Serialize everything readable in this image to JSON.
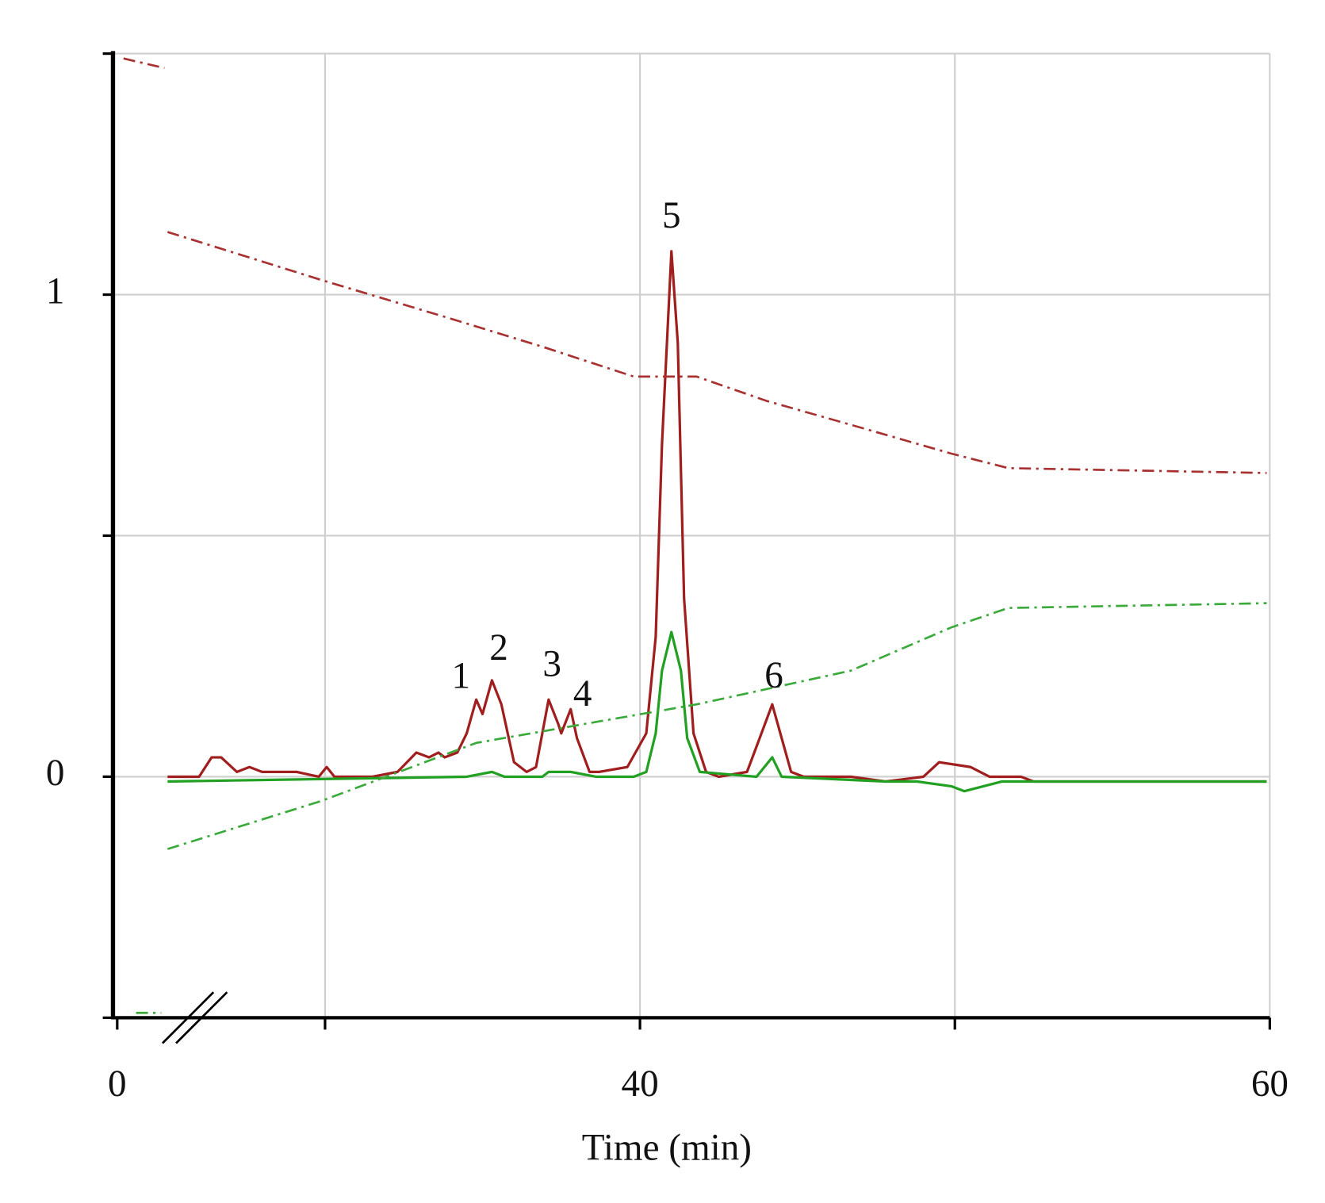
{
  "chart_data": {
    "type": "line",
    "x_label": "Time (min)",
    "xlim": [
      0,
      60
    ],
    "xbreak": [
      1.6,
      25
    ],
    "xticks": [
      0,
      40,
      60
    ],
    "xminor_ticks": [
      30,
      50
    ],
    "ylim": [
      -0.5,
      1.5
    ],
    "yticks": [
      0,
      1
    ],
    "yminor_ticks": [
      -0.5,
      0.5,
      1.5
    ],
    "grid": true,
    "series": [
      {
        "color": "#a01e1e",
        "linestyle": "solid",
        "x": [
          25.0,
          26.0,
          26.4,
          26.7,
          27.2,
          27.6,
          28.0,
          28.7,
          29.1,
          29.8,
          30.05,
          30.3,
          31.5,
          32.3,
          32.9,
          33.3,
          33.6,
          33.8,
          34.2,
          34.5,
          34.8,
          35.0,
          35.3,
          35.6,
          36.0,
          36.4,
          36.7,
          37.1,
          37.4,
          37.5,
          37.8,
          38.0,
          38.4,
          38.7,
          39.6,
          40.2,
          40.5,
          40.7,
          41.0,
          41.2,
          41.4,
          41.7,
          42.1,
          42.5,
          43.4,
          43.8,
          44.2,
          44.5,
          44.8,
          45.2,
          46.7,
          47.8,
          49.0,
          49.5,
          50.5,
          51.1,
          51.5,
          52.1,
          52.5,
          54.8,
          59.9
        ],
        "values": [
          0.0,
          0.0,
          0.04,
          0.04,
          0.01,
          0.02,
          0.01,
          0.01,
          0.01,
          0.0,
          0.02,
          0.0,
          0.0,
          0.01,
          0.05,
          0.04,
          0.05,
          0.04,
          0.05,
          0.09,
          0.16,
          0.13,
          0.2,
          0.15,
          0.03,
          0.01,
          0.02,
          0.16,
          0.11,
          0.09,
          0.14,
          0.08,
          0.01,
          0.01,
          0.02,
          0.09,
          0.29,
          0.69,
          1.09,
          0.9,
          0.37,
          0.09,
          0.01,
          0.0,
          0.01,
          0.08,
          0.15,
          0.08,
          0.01,
          0.0,
          0.0,
          -0.01,
          0.0,
          0.03,
          0.02,
          0.0,
          0.0,
          0.0,
          -0.01,
          -0.01,
          -0.01
        ]
      },
      {
        "color": "#22a022",
        "linestyle": "solid",
        "x": [
          25.0,
          34.5,
          35.3,
          35.7,
          36.9,
          37.1,
          37.8,
          38.6,
          39.8,
          40.2,
          40.5,
          40.7,
          41.0,
          41.3,
          41.5,
          41.9,
          43.7,
          44.2,
          44.5,
          47.8,
          48.8,
          49.9,
          50.3,
          51.5,
          59.9
        ],
        "values": [
          -0.01,
          0.0,
          0.01,
          0.0,
          0.0,
          0.01,
          0.01,
          0.0,
          0.0,
          0.01,
          0.09,
          0.22,
          0.3,
          0.22,
          0.08,
          0.01,
          0.0,
          0.04,
          0.0,
          -0.01,
          -0.01,
          -0.02,
          -0.03,
          -0.01,
          -0.01
        ]
      },
      {
        "color": "#a83232",
        "linestyle": "dashdot",
        "x": [
          0.2,
          1.5,
          1.55,
          25.0,
          29.9,
          34.0,
          37.0,
          39.8,
          41.8,
          44.0,
          46.7,
          49.9,
          51.7,
          59.9
        ],
        "values": [
          1.49,
          1.47,
          null,
          1.13,
          1.03,
          0.95,
          0.89,
          0.83,
          0.83,
          0.78,
          0.73,
          0.67,
          0.64,
          0.63
        ]
      },
      {
        "color": "#3aaa3a",
        "linestyle": "dashdot",
        "x": [
          0.6,
          1.4,
          1.5,
          25.0,
          29.9,
          34.8,
          41.8,
          46.7,
          49.9,
          51.7,
          59.9
        ],
        "values": [
          -0.49,
          -0.49,
          null,
          -0.15,
          -0.05,
          0.07,
          0.15,
          0.22,
          0.31,
          0.35,
          0.36
        ]
      }
    ],
    "annotations": [
      {
        "text": "1",
        "x": 34.8,
        "y": 0.16
      },
      {
        "text": "2",
        "x": 35.3,
        "y": 0.2
      },
      {
        "text": "3",
        "x": 37.1,
        "y": 0.16
      },
      {
        "text": "4",
        "x": 37.8,
        "y": 0.14
      },
      {
        "text": "5",
        "x": 41.0,
        "y": 1.09
      },
      {
        "text": "6",
        "x": 44.2,
        "y": 0.15
      }
    ]
  }
}
